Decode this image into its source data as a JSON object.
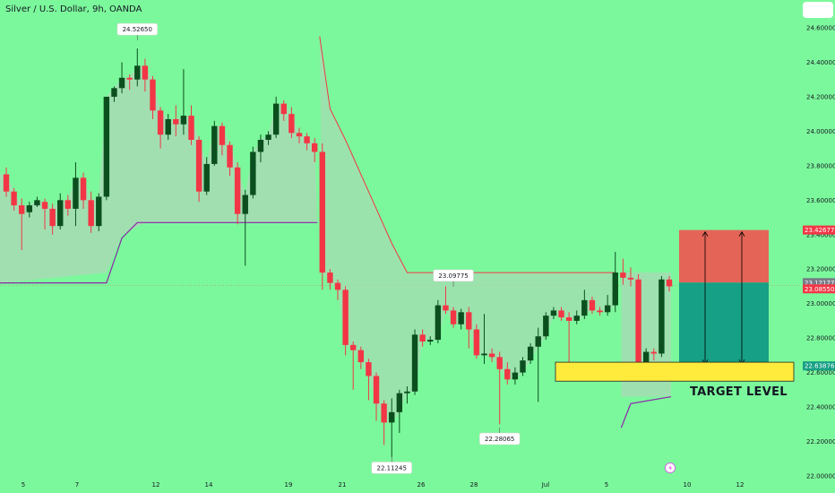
{
  "header": {
    "title": "Silver / U.S. Dollar, 9h, OANDA"
  },
  "colors": {
    "background": "#7cf89c",
    "up": "#0a4f1d",
    "down": "#f23645",
    "risk_zone": "#ef5350",
    "reward_zone": "#16a085",
    "target_band": "#ffeb3b",
    "baseline": "#8e24aa"
  },
  "price_axis_labels": [
    "24.60000",
    "24.40000",
    "24.20000",
    "24.00000",
    "23.80000",
    "23.60000",
    "23.40000",
    "23.20000",
    "23.00000",
    "22.80000",
    "22.60000",
    "22.40000",
    "22.20000",
    "22.00000"
  ],
  "price_tags": {
    "target_top": "23.42677",
    "last_a": "23.12177",
    "last_b": "23.08550",
    "target_low": "22.63876"
  },
  "time_axis_labels": [
    "5",
    "7",
    "12",
    "14",
    "19",
    "21",
    "26",
    "28",
    "Jul",
    "5",
    "10",
    "12"
  ],
  "annotations": {
    "high": "24.52650",
    "mid_high": "23.09775",
    "low": "22.11245",
    "second_low": "22.28065"
  },
  "target_text": "TARGET LEVEL",
  "chart_data": {
    "type": "candlestick",
    "symbol": "Silver / U.S. Dollar",
    "interval": "9h",
    "source": "OANDA",
    "ylim": [
      22.0,
      24.65
    ],
    "x_tick_labels": [
      "5",
      "7",
      "12",
      "14",
      "19",
      "21",
      "26",
      "28",
      "Jul",
      "5",
      "10",
      "12"
    ],
    "labeled_points": [
      {
        "label": "24.52650",
        "value": 24.5265
      },
      {
        "label": "23.09775",
        "value": 23.09775
      },
      {
        "label": "22.11245",
        "value": 22.11245
      },
      {
        "label": "22.28065",
        "value": 22.28065
      }
    ],
    "candles": [
      [
        23.75,
        23.65,
        23.79,
        23.62
      ],
      [
        23.65,
        23.57,
        23.67,
        23.54
      ],
      [
        23.57,
        23.52,
        23.61,
        23.31
      ],
      [
        23.53,
        23.57,
        23.59,
        23.5
      ],
      [
        23.57,
        23.6,
        23.62,
        23.56
      ],
      [
        23.59,
        23.55,
        23.61,
        23.43
      ],
      [
        23.55,
        23.45,
        23.58,
        23.4
      ],
      [
        23.45,
        23.6,
        23.64,
        23.43
      ],
      [
        23.6,
        23.55,
        23.63,
        23.51
      ],
      [
        23.55,
        23.73,
        23.82,
        23.45
      ],
      [
        23.73,
        23.6,
        23.76,
        23.55
      ],
      [
        23.6,
        23.45,
        23.65,
        23.41
      ],
      [
        23.45,
        23.62,
        23.64,
        23.42
      ],
      [
        23.62,
        24.2,
        24.2,
        23.6
      ],
      [
        24.2,
        24.25,
        24.26,
        24.17
      ],
      [
        24.25,
        24.31,
        24.4,
        24.22
      ],
      [
        24.31,
        24.3,
        24.33,
        24.24
      ],
      [
        24.3,
        24.38,
        24.48,
        24.26
      ],
      [
        24.38,
        24.3,
        24.42,
        24.23
      ],
      [
        24.3,
        24.12,
        24.32,
        24.07
      ],
      [
        24.12,
        23.98,
        24.14,
        23.9
      ],
      [
        23.98,
        24.07,
        24.1,
        23.95
      ],
      [
        24.07,
        24.04,
        24.15,
        23.97
      ],
      [
        24.04,
        24.09,
        24.36,
        23.98
      ],
      [
        24.09,
        23.95,
        24.15,
        23.92
      ],
      [
        23.95,
        23.65,
        23.97,
        23.59
      ],
      [
        23.65,
        23.81,
        23.85,
        23.63
      ],
      [
        23.81,
        24.03,
        24.06,
        23.8
      ],
      [
        24.03,
        23.92,
        24.05,
        23.86
      ],
      [
        23.92,
        23.79,
        23.94,
        23.74
      ],
      [
        23.79,
        23.52,
        23.82,
        23.46
      ],
      [
        23.52,
        23.63,
        23.66,
        23.22
      ],
      [
        23.63,
        23.88,
        23.91,
        23.61
      ],
      [
        23.88,
        23.95,
        23.98,
        23.82
      ],
      [
        23.95,
        23.98,
        24.0,
        23.92
      ],
      [
        23.98,
        24.16,
        24.2,
        23.96
      ],
      [
        24.16,
        24.1,
        24.18,
        24.06
      ],
      [
        24.1,
        23.99,
        24.14,
        23.96
      ],
      [
        23.99,
        23.97,
        24.02,
        23.93
      ],
      [
        23.97,
        23.93,
        23.99,
        23.89
      ],
      [
        23.93,
        23.88,
        23.96,
        23.82
      ],
      [
        23.88,
        23.18,
        23.93,
        23.08
      ],
      [
        23.18,
        23.12,
        23.2,
        23.08
      ],
      [
        23.12,
        23.08,
        23.14,
        23.02
      ],
      [
        23.08,
        22.76,
        23.1,
        22.7
      ],
      [
        22.76,
        22.73,
        22.78,
        22.5
      ],
      [
        22.73,
        22.66,
        22.75,
        22.62
      ],
      [
        22.66,
        22.58,
        22.68,
        22.44
      ],
      [
        22.58,
        22.42,
        22.6,
        22.32
      ],
      [
        22.42,
        22.31,
        22.44,
        22.18
      ],
      [
        22.31,
        22.37,
        22.45,
        22.11
      ],
      [
        22.37,
        22.48,
        22.5,
        22.25
      ],
      [
        22.48,
        22.49,
        22.52,
        22.42
      ],
      [
        22.49,
        22.82,
        22.85,
        22.47
      ],
      [
        22.82,
        22.78,
        22.85,
        22.75
      ],
      [
        22.78,
        22.79,
        22.81,
        22.76
      ],
      [
        22.79,
        22.99,
        23.02,
        22.77
      ],
      [
        22.99,
        22.96,
        23.1,
        22.94
      ],
      [
        22.96,
        22.88,
        22.98,
        22.86
      ],
      [
        22.88,
        22.95,
        22.97,
        22.85
      ],
      [
        22.95,
        22.85,
        22.98,
        22.74
      ],
      [
        22.85,
        22.7,
        22.88,
        22.68
      ],
      [
        22.7,
        22.71,
        22.94,
        22.65
      ],
      [
        22.71,
        22.69,
        22.74,
        22.66
      ],
      [
        22.69,
        22.62,
        22.72,
        22.3
      ],
      [
        22.62,
        22.56,
        22.66,
        22.53
      ],
      [
        22.56,
        22.6,
        22.63,
        22.53
      ],
      [
        22.6,
        22.67,
        22.69,
        22.58
      ],
      [
        22.67,
        22.75,
        22.77,
        22.65
      ],
      [
        22.75,
        22.81,
        22.86,
        22.43
      ],
      [
        22.81,
        22.93,
        22.95,
        22.79
      ],
      [
        22.93,
        22.96,
        22.98,
        22.91
      ],
      [
        22.96,
        22.92,
        22.98,
        22.9
      ],
      [
        22.92,
        22.9,
        22.95,
        22.63
      ],
      [
        22.9,
        22.93,
        22.96,
        22.88
      ],
      [
        22.93,
        23.02,
        23.08,
        22.91
      ],
      [
        23.02,
        22.96,
        23.04,
        22.94
      ],
      [
        22.96,
        22.95,
        22.98,
        22.93
      ],
      [
        22.95,
        22.99,
        23.05,
        22.93
      ],
      [
        22.99,
        23.18,
        23.3,
        22.95
      ],
      [
        23.18,
        23.15,
        23.26,
        23.11
      ],
      [
        23.15,
        23.14,
        23.21,
        23.1
      ],
      [
        23.14,
        22.64,
        23.17,
        22.61
      ],
      [
        22.64,
        22.72,
        22.74,
        22.62
      ],
      [
        22.72,
        22.71,
        22.74,
        22.67
      ],
      [
        22.71,
        23.14,
        23.16,
        22.69
      ],
      [
        23.14,
        23.1,
        23.16,
        23.07
      ]
    ],
    "baseline_fill_left": {
      "value": 23.47
    },
    "trade_box": {
      "entry": 23.12177,
      "stop": 23.42677,
      "target": 22.63876
    },
    "target_band": [
      22.55,
      22.66
    ]
  }
}
